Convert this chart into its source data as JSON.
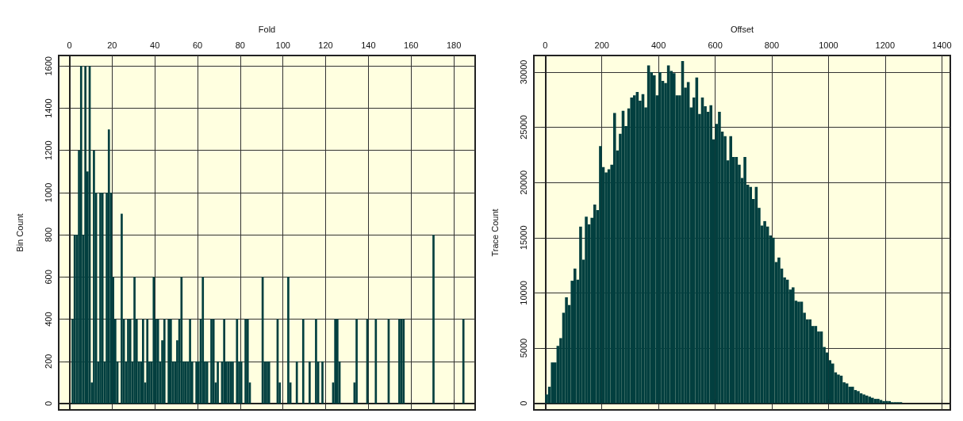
{
  "chart_data": [
    {
      "type": "histogram",
      "xlabel": "Fold",
      "ylabel": "Bin Count",
      "color": "#023f3f",
      "grid": true,
      "bins": [
        0,
        1,
        2,
        3,
        4,
        5,
        6,
        7,
        8,
        9,
        10,
        11,
        12,
        13,
        14,
        15,
        16,
        17,
        18,
        19,
        20,
        21,
        22,
        23,
        24,
        25,
        26,
        27,
        28,
        29,
        30,
        31,
        32,
        33,
        34,
        35,
        36,
        37,
        38,
        39,
        40,
        41,
        42,
        43,
        44,
        45,
        46,
        47,
        48,
        49,
        50,
        51,
        52,
        53,
        54,
        55,
        56,
        57,
        58,
        59,
        60,
        61,
        62,
        63,
        64,
        65,
        66,
        67,
        68,
        69,
        70,
        71,
        72,
        73,
        74,
        75,
        76,
        77,
        78,
        79,
        80,
        81,
        82,
        83,
        84,
        85,
        86,
        87,
        88,
        89,
        90,
        91,
        92,
        93,
        94,
        95,
        96,
        97,
        98,
        99,
        100,
        101,
        102,
        103,
        104,
        105,
        106,
        107,
        108,
        109,
        110,
        111,
        112,
        113,
        114,
        115,
        116,
        117,
        118,
        119,
        120,
        121,
        122,
        123,
        124,
        125,
        126,
        127,
        128,
        129,
        130,
        131,
        132,
        133,
        134,
        135,
        136,
        137,
        138,
        139,
        140,
        141,
        142,
        143,
        144,
        145,
        146,
        147,
        148,
        149,
        150,
        151,
        152,
        153,
        154,
        155,
        156,
        157,
        158,
        159,
        160,
        161,
        162,
        163,
        164,
        165,
        166,
        167,
        168,
        169,
        170,
        171,
        172,
        173,
        174,
        175,
        176,
        177,
        178,
        179,
        180,
        181,
        182,
        183,
        184,
        185,
        186,
        187,
        188
      ],
      "values": [
        0,
        400,
        800,
        800,
        1200,
        1600,
        800,
        1600,
        1100,
        1600,
        100,
        1200,
        1000,
        200,
        1000,
        1000,
        200,
        1000,
        1300,
        1000,
        600,
        400,
        200,
        0,
        900,
        400,
        200,
        400,
        400,
        200,
        600,
        400,
        200,
        200,
        400,
        100,
        400,
        200,
        200,
        600,
        400,
        400,
        200,
        300,
        400,
        0,
        400,
        400,
        200,
        200,
        300,
        400,
        600,
        200,
        200,
        200,
        400,
        200,
        0,
        200,
        200,
        400,
        600,
        200,
        200,
        0,
        400,
        400,
        100,
        200,
        0,
        200,
        400,
        200,
        200,
        200,
        200,
        0,
        400,
        200,
        200,
        0,
        400,
        400,
        100,
        0,
        0,
        0,
        0,
        0,
        600,
        200,
        200,
        200,
        0,
        0,
        0,
        400,
        100,
        0,
        0,
        0,
        600,
        100,
        0,
        0,
        200,
        0,
        0,
        400,
        0,
        0,
        200,
        0,
        0,
        400,
        200,
        0,
        200,
        0,
        0,
        0,
        0,
        100,
        400,
        400,
        200,
        0,
        0,
        0,
        0,
        0,
        0,
        100,
        400,
        0,
        0,
        0,
        0,
        400,
        0,
        0,
        0,
        400,
        0,
        0,
        0,
        0,
        0,
        400,
        0,
        0,
        0,
        0,
        400,
        400,
        400,
        0,
        0,
        0,
        0,
        0,
        0,
        0,
        0,
        0,
        0,
        0,
        0,
        0,
        800,
        0,
        0,
        0,
        0,
        0,
        0,
        0,
        0,
        0,
        0,
        0,
        0,
        0,
        400,
        0,
        0,
        0
      ],
      "xlim": [
        -5,
        190
      ],
      "xticks": [
        0,
        20,
        40,
        60,
        80,
        100,
        120,
        140,
        160,
        180
      ],
      "ylim": [
        -30,
        1650
      ],
      "yticks": [
        0,
        200,
        400,
        600,
        800,
        1000,
        1200,
        1400,
        1600
      ]
    },
    {
      "type": "histogram",
      "xlabel": "Offset",
      "ylabel": "Trace Count",
      "color": "#023f3f",
      "grid": true,
      "bins": [
        0,
        10,
        20,
        30,
        40,
        50,
        60,
        70,
        80,
        90,
        100,
        110,
        120,
        130,
        140,
        150,
        160,
        170,
        180,
        190,
        200,
        210,
        220,
        230,
        240,
        250,
        260,
        270,
        280,
        290,
        300,
        310,
        320,
        330,
        340,
        350,
        360,
        370,
        380,
        390,
        400,
        410,
        420,
        430,
        440,
        450,
        460,
        470,
        480,
        490,
        500,
        510,
        520,
        530,
        540,
        550,
        560,
        570,
        580,
        590,
        600,
        610,
        620,
        630,
        640,
        650,
        660,
        670,
        680,
        690,
        700,
        710,
        720,
        730,
        740,
        750,
        760,
        770,
        780,
        790,
        800,
        810,
        820,
        830,
        840,
        850,
        860,
        870,
        880,
        890,
        900,
        910,
        920,
        930,
        940,
        950,
        960,
        970,
        980,
        990,
        1000,
        1010,
        1020,
        1030,
        1040,
        1050,
        1060,
        1070,
        1080,
        1090,
        1100,
        1110,
        1120,
        1130,
        1140,
        1150,
        1160,
        1170,
        1180,
        1190,
        1200,
        1210,
        1220,
        1230,
        1240,
        1250,
        1260
      ],
      "values": [
        800,
        1500,
        3700,
        3700,
        5200,
        5900,
        8200,
        9600,
        8900,
        11100,
        12200,
        11200,
        16000,
        13000,
        16900,
        16200,
        16800,
        18000,
        17500,
        23300,
        21400,
        20900,
        21200,
        21600,
        26300,
        22900,
        24400,
        26500,
        25100,
        26700,
        27700,
        27900,
        28200,
        27400,
        28000,
        26800,
        30600,
        30000,
        29700,
        27900,
        30000,
        29200,
        29000,
        30600,
        30100,
        29900,
        27900,
        27900,
        31000,
        28600,
        29100,
        26800,
        27700,
        29500,
        26200,
        27700,
        26900,
        26400,
        27000,
        23900,
        25300,
        26400,
        24600,
        24200,
        22000,
        24200,
        22300,
        22300,
        21600,
        20400,
        22300,
        19800,
        19600,
        18500,
        19600,
        17700,
        16100,
        16500,
        16000,
        15200,
        15000,
        12800,
        13200,
        12200,
        11400,
        11200,
        10300,
        10500,
        9300,
        9200,
        9200,
        8200,
        7600,
        7600,
        7000,
        7000,
        6500,
        6500,
        5100,
        4600,
        3900,
        3600,
        2800,
        2600,
        2500,
        1900,
        1800,
        1500,
        1500,
        1200,
        1100,
        900,
        800,
        700,
        600,
        500,
        400,
        400,
        300,
        200,
        200,
        200,
        100,
        100,
        100,
        100
      ],
      "xlim": [
        -40,
        1430
      ],
      "xticks": [
        0,
        200,
        400,
        600,
        800,
        1000,
        1200,
        1400
      ],
      "ylim": [
        -600,
        31500
      ],
      "yticks": [
        0,
        5000,
        10000,
        15000,
        20000,
        25000,
        30000
      ]
    }
  ]
}
